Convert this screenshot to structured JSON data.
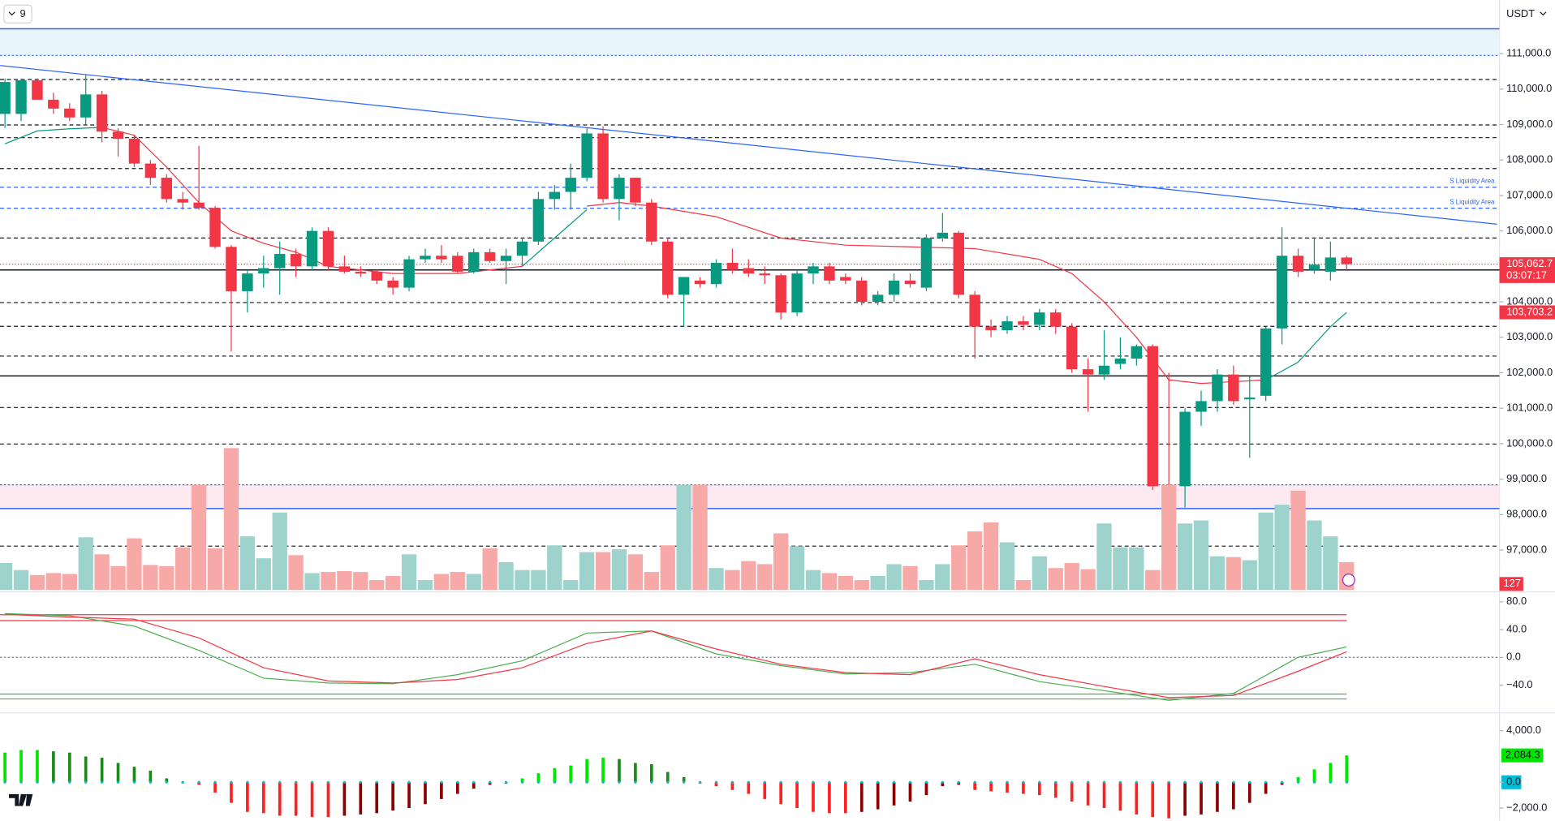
{
  "toolbar": {
    "interval": "9",
    "currency": "USDT"
  },
  "chart_data": [
    {
      "type": "candlestick",
      "ylim": [
        95875,
        112510
      ],
      "yticks": [
        {
          "value": 111000,
          "label": "111,000.0"
        },
        {
          "value": 110000,
          "label": "110,000.0"
        },
        {
          "value": 109000,
          "label": "109,000.0"
        },
        {
          "value": 108000,
          "label": "108,000.0"
        },
        {
          "value": 107000,
          "label": "107,000.0"
        },
        {
          "value": 106000,
          "label": "106,000.0"
        },
        {
          "value": 105000,
          "label": "105,000.0"
        },
        {
          "value": 104000,
          "label": "104,000.0"
        },
        {
          "value": 103000,
          "label": "103,000.0"
        },
        {
          "value": 102000,
          "label": "102,000.0"
        },
        {
          "value": 101000,
          "label": "101,000.0"
        },
        {
          "value": 100000,
          "label": "100,000.0"
        },
        {
          "value": 99000,
          "label": "99,000.0"
        },
        {
          "value": 98000,
          "label": "98,000.0"
        },
        {
          "value": 97000,
          "label": "97,000.0"
        }
      ],
      "up_color": "#089981",
      "down_color": "#f23645",
      "open": [
        109300,
        109300,
        110250,
        109700,
        109450,
        109200,
        109850,
        108800,
        108600,
        107900,
        107500,
        106900,
        106800,
        106650,
        105550,
        104300,
        104800,
        104950,
        105350,
        105000,
        106000,
        105000,
        104850,
        104850,
        104600,
        104400,
        105200,
        105300,
        105300,
        104850,
        105400,
        105150,
        105300,
        105700,
        106900,
        107100,
        107500,
        108750,
        106900,
        107500,
        106800,
        105700,
        104200,
        104600,
        104500,
        105100,
        104950,
        104800,
        104750,
        103700,
        104800,
        105000,
        104700,
        104600,
        104000,
        104200,
        104600,
        104400,
        105800,
        105950,
        104200,
        103300,
        103200,
        103450,
        103350,
        103700,
        103300,
        102100,
        101950,
        102250,
        102400,
        102750,
        98800,
        98800,
        100900,
        101200,
        101950,
        101250,
        101350,
        103250,
        105300,
        104900,
        104850,
        105250
      ],
      "high": [
        110300,
        110300,
        110300,
        109900,
        109600,
        110400,
        109950,
        108900,
        108700,
        108000,
        107600,
        107100,
        108400,
        106700,
        105600,
        104900,
        105300,
        105700,
        105500,
        106100,
        106100,
        105300,
        105000,
        104900,
        104700,
        105300,
        105500,
        105600,
        105400,
        105500,
        105500,
        105500,
        105800,
        107100,
        107300,
        107900,
        108900,
        108950,
        107600,
        107500,
        106900,
        105800,
        104700,
        104700,
        105200,
        105500,
        105200,
        105000,
        104800,
        104900,
        105100,
        105100,
        104800,
        104700,
        104300,
        104800,
        104800,
        105900,
        106500,
        106000,
        104300,
        103500,
        103600,
        103600,
        103800,
        103800,
        103400,
        102400,
        103200,
        103000,
        102800,
        102800,
        102000,
        101000,
        101500,
        102100,
        102200,
        101900,
        103300,
        106100,
        105500,
        105800,
        105700,
        105300
      ],
      "low": [
        108900,
        109100,
        109700,
        109300,
        109100,
        109000,
        108500,
        108100,
        107800,
        107300,
        106800,
        106600,
        106600,
        105500,
        102600,
        103700,
        104400,
        104200,
        104700,
        104900,
        104900,
        104800,
        104700,
        104500,
        104200,
        104300,
        105100,
        105100,
        104800,
        104800,
        105100,
        104500,
        105000,
        105600,
        106600,
        106600,
        107400,
        106800,
        106300,
        106700,
        105600,
        104100,
        103300,
        104400,
        104400,
        104800,
        104700,
        104500,
        103500,
        103600,
        104500,
        104500,
        104500,
        103900,
        103900,
        104000,
        104400,
        104300,
        105700,
        104100,
        102400,
        103000,
        103100,
        103200,
        103200,
        103100,
        102000,
        100900,
        101800,
        102100,
        102200,
        98700,
        98600,
        98200,
        100500,
        100900,
        101100,
        99600,
        101200,
        102800,
        104700,
        104800,
        104600,
        104900
      ],
      "close": [
        110200,
        110250,
        109700,
        109450,
        109200,
        109850,
        108800,
        108600,
        107900,
        107500,
        106900,
        106800,
        106650,
        105550,
        104300,
        104800,
        104950,
        105350,
        105000,
        106000,
        105000,
        104850,
        104800,
        104600,
        104400,
        105200,
        105300,
        105200,
        104850,
        105400,
        105150,
        105300,
        105700,
        106900,
        107100,
        107500,
        108750,
        106900,
        107500,
        106800,
        105700,
        104200,
        104700,
        104500,
        105100,
        104900,
        104800,
        104750,
        103700,
        104800,
        105000,
        104600,
        104600,
        104000,
        104200,
        104600,
        104500,
        105800,
        105950,
        104200,
        103300,
        103200,
        103450,
        103350,
        103700,
        103300,
        102100,
        101950,
        102200,
        102400,
        102750,
        98800,
        98750,
        100900,
        101200,
        101950,
        101200,
        101300,
        103250,
        105300,
        104850,
        105050,
        105250,
        105062.7
      ],
      "last_label": "105,062.7",
      "countdown": "03:07:17",
      "zones": [
        {
          "from": 110950,
          "to": 111700,
          "color": "#e3f2fd"
        },
        {
          "from": 98170,
          "to": 98840,
          "color": "#fce4ec"
        }
      ],
      "levels": [
        {
          "value": 111700,
          "style": "solid",
          "color": "#2962ff"
        },
        {
          "value": 110950,
          "style": "dotted",
          "color": "#2962ff"
        },
        {
          "value": 110270,
          "style": "dashed",
          "color": "#131722"
        },
        {
          "value": 108990,
          "style": "dashed",
          "color": "#131722"
        },
        {
          "value": 108630,
          "style": "dashed",
          "color": "#131722"
        },
        {
          "value": 107760,
          "style": "dashed",
          "color": "#131722"
        },
        {
          "value": 107230,
          "style": "dashed",
          "color": "#2962ff",
          "label": "S Liquidity Area"
        },
        {
          "value": 106640,
          "style": "dashed",
          "color": "#2962ff",
          "label": "S Liquidity Area"
        },
        {
          "value": 105800,
          "style": "dashed",
          "color": "#131722"
        },
        {
          "value": 104900,
          "style": "solid",
          "color": "#131722"
        },
        {
          "value": 103980,
          "style": "dashed",
          "color": "#131722"
        },
        {
          "value": 103310,
          "style": "dashed",
          "color": "#131722"
        },
        {
          "value": 102470,
          "style": "dashed",
          "color": "#131722"
        },
        {
          "value": 101910,
          "style": "solid",
          "color": "#131722"
        },
        {
          "value": 101020,
          "style": "dashed",
          "color": "#131722"
        },
        {
          "value": 99990,
          "style": "dashed",
          "color": "#131722"
        },
        {
          "value": 98840,
          "style": "dotted",
          "color": "#2962ff"
        },
        {
          "value": 98170,
          "style": "solid",
          "color": "#2962ff"
        },
        {
          "value": 97110,
          "style": "dashed",
          "color": "#131722"
        }
      ],
      "trendline": {
        "color": "#2962ff",
        "x": [
          -0.3,
          92.3
        ],
        "y": [
          110665,
          106190
        ]
      },
      "ma_x": [
        0,
        2,
        4,
        6,
        8,
        10,
        12,
        14,
        16,
        18,
        20,
        24,
        28,
        32,
        34,
        36,
        38,
        40,
        44,
        48,
        52,
        56,
        60,
        64,
        66,
        68,
        70,
        72,
        74,
        76,
        78,
        80,
        82,
        83
      ],
      "ma": [
        {
          "color": "#089981",
          "values": [
            108460,
            108820,
            108880,
            108920,
            null,
            null,
            null,
            null,
            null,
            null,
            null,
            null,
            null,
            105000,
            105800,
            106600,
            null,
            null,
            null,
            null,
            null,
            null,
            null,
            null,
            null,
            null,
            null,
            null,
            null,
            null,
            101800,
            102300,
            103300,
            103703.2
          ],
          "value_labels": [
            null,
            null,
            null,
            null,
            null,
            null,
            null,
            null,
            null,
            null,
            null,
            null,
            null,
            null,
            null,
            null,
            null,
            null,
            null,
            null,
            null,
            null,
            null,
            null,
            null,
            null,
            null,
            null,
            null,
            null,
            null,
            null,
            null,
            "103,703.2"
          ]
        },
        {
          "color": "#f23645",
          "values": [
            null,
            null,
            null,
            108920,
            108700,
            107800,
            106800,
            106000,
            105650,
            105400,
            105000,
            104800,
            104800,
            105000,
            null,
            106700,
            106800,
            106700,
            106400,
            105800,
            105600,
            105550,
            105500,
            105200,
            104800,
            104000,
            103000,
            101800,
            101700,
            101750,
            101800,
            null,
            null,
            null
          ]
        }
      ]
    },
    {
      "type": "bar",
      "ylim": [
        0,
        2699
      ],
      "up_color": "#9ed3cd",
      "down_color": "#f7a9a7",
      "values": [
        123,
        91,
        68,
        77,
        73,
        241,
        163,
        109,
        236,
        114,
        109,
        195,
        481,
        191,
        649,
        245,
        145,
        354,
        159,
        77,
        82,
        86,
        82,
        45,
        64,
        163,
        45,
        73,
        82,
        73,
        191,
        127,
        91,
        91,
        204,
        45,
        173,
        173,
        186,
        163,
        82,
        204,
        481,
        481,
        100,
        91,
        132,
        118,
        259,
        200,
        91,
        77,
        64,
        45,
        64,
        118,
        109,
        45,
        118,
        204,
        268,
        309,
        218,
        45,
        154,
        100,
        123,
        95,
        304,
        195,
        195,
        91,
        481,
        304,
        318,
        154,
        150,
        136,
        354,
        390,
        454,
        318,
        245,
        127
      ],
      "last_label": "127"
    },
    {
      "type": "line",
      "ylim": [
        -78.6,
        92.9
      ],
      "yticks": [
        {
          "value": 80,
          "label": "80.0"
        },
        {
          "value": 40,
          "label": "40.0"
        },
        {
          "value": 0,
          "label": "0.0"
        },
        {
          "value": -40,
          "label": "−40.0"
        }
      ],
      "levels": [
        {
          "value": 61.4,
          "color": "#f23645"
        },
        {
          "value": 52.9,
          "color": "#f23645"
        },
        {
          "value": -52.9,
          "color": "#4caf50"
        },
        {
          "value": -60,
          "color": "#4caf50"
        }
      ],
      "x": [
        0,
        4,
        8,
        12,
        16,
        20,
        24,
        28,
        32,
        36,
        40,
        44,
        48,
        52,
        56,
        60,
        64,
        68,
        72,
        76,
        80,
        83
      ],
      "series": [
        {
          "color": "#4caf50",
          "values": [
            63,
            60,
            45,
            10,
            -30,
            -37,
            -38,
            -25,
            -5,
            35,
            38,
            5,
            -12,
            -24,
            -22,
            -10,
            -35,
            -48,
            -62,
            -52,
            0,
            15
          ]
        },
        {
          "color": "#f23645",
          "values": [
            62,
            58,
            55,
            28,
            -15,
            -34,
            -37,
            -32,
            -15,
            20,
            38,
            12,
            -10,
            -22,
            -25,
            -2,
            -25,
            -42,
            -58,
            -55,
            -20,
            8
          ]
        }
      ]
    },
    {
      "type": "bar",
      "ylim": [
        -3000,
        5308
      ],
      "yticks": [
        {
          "value": 4000,
          "label": "4,000.0"
        },
        {
          "value": 0,
          "label": "0.0"
        },
        {
          "value": -2000,
          "label": "−2,000.0"
        }
      ],
      "colors": {
        "pos_up": "#00e600",
        "pos_down": "#1b8a1b",
        "neg_down": "#ff1f1f",
        "neg_up": "#8b0000"
      },
      "values": [
        2300,
        2500,
        2500,
        2400,
        2300,
        2000,
        1900,
        1500,
        1200,
        900,
        300,
        0,
        -200,
        -800,
        -1600,
        -2300,
        -2400,
        -2600,
        -2600,
        -2700,
        -2700,
        -2600,
        -2500,
        -2400,
        -2200,
        -2000,
        -1700,
        -1300,
        -900,
        -500,
        -200,
        -100,
        300,
        700,
        1100,
        1300,
        1800,
        1900,
        1800,
        1500,
        1400,
        800,
        400,
        -100,
        -300,
        -600,
        -900,
        -1300,
        -1700,
        -2000,
        -2300,
        -2400,
        -2400,
        -2300,
        -2100,
        -1800,
        -1500,
        -1000,
        -300,
        -200,
        -600,
        -700,
        -800,
        -900,
        -1000,
        -1200,
        -1500,
        -1800,
        -2000,
        -2200,
        -2500,
        -2700,
        -2800,
        -2600,
        -2500,
        -2300,
        -2100,
        -1600,
        -900,
        -200,
        400,
        1000,
        1500,
        2084.3
      ],
      "value_labels": [
        null,
        null,
        null,
        null,
        null,
        null,
        null,
        null,
        null,
        null,
        null,
        null,
        null,
        null,
        null,
        null,
        null,
        null,
        null,
        null,
        null,
        null,
        null,
        null,
        null,
        null,
        null,
        null,
        null,
        null,
        null,
        null,
        null,
        null,
        null,
        null,
        null,
        null,
        null,
        null,
        null,
        null,
        null,
        null,
        null,
        null,
        null,
        null,
        null,
        null,
        null,
        null,
        null,
        null,
        null,
        null,
        null,
        null,
        null,
        null,
        null,
        null,
        null,
        null,
        null,
        null,
        null,
        null,
        null,
        null,
        null,
        null,
        null,
        null,
        null,
        null,
        null,
        null,
        null,
        null,
        null,
        null,
        null,
        "2,084.3"
      ]
    }
  ]
}
